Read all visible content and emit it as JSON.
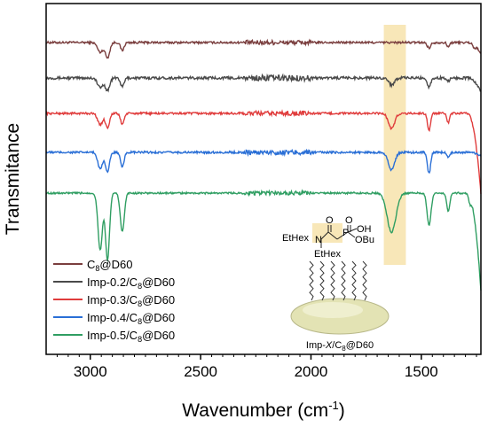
{
  "chart_data": {
    "type": "line",
    "title": "",
    "xlabel": "Wavenumber (cm",
    "xlabel_sup": "-1",
    "xlabel_end": ")",
    "ylabel": "Transmitance",
    "xlim": [
      3200,
      1230
    ],
    "x_reversed": true,
    "y_ticks_shown": false,
    "xticks": [
      {
        "value": 3000,
        "label": "3000"
      },
      {
        "value": 2500,
        "label": "2500"
      },
      {
        "value": 2000,
        "label": "2000"
      },
      {
        "value": 1500,
        "label": "1500"
      }
    ],
    "highlight_band": {
      "from": 1670,
      "to": 1570,
      "color": "#f6dfa0"
    },
    "series": [
      {
        "name_parts": [
          "C",
          "8",
          "@D60"
        ],
        "color": "#7a3e3e",
        "baseline": 1.0,
        "noise": 0.012,
        "peaks": [
          [
            2955,
            0.055,
            12
          ],
          [
            2922,
            0.085,
            10
          ],
          [
            2855,
            0.045,
            8
          ],
          [
            1465,
            0.03,
            8
          ],
          [
            1378,
            0.025,
            6
          ],
          [
            1260,
            0.02,
            5
          ]
        ],
        "tail": -0.06
      },
      {
        "name_parts": [
          "Imp-0.2/C",
          "8",
          "@D60"
        ],
        "color": "#4a4a4a",
        "baseline": 0.8,
        "noise": 0.015,
        "peaks": [
          [
            2955,
            0.055,
            12
          ],
          [
            2922,
            0.07,
            10
          ],
          [
            2855,
            0.05,
            8
          ],
          [
            1635,
            0.04,
            12
          ],
          [
            1465,
            0.05,
            8
          ],
          [
            1378,
            0.02,
            6
          ]
        ],
        "tail": -0.08
      },
      {
        "name_parts": [
          "Imp-0.3/C",
          "8",
          "@D60"
        ],
        "color": "#e03c3c",
        "baseline": 0.6,
        "noise": 0.012,
        "peaks": [
          [
            2955,
            0.065,
            11
          ],
          [
            2922,
            0.08,
            9
          ],
          [
            2855,
            0.06,
            8
          ],
          [
            1635,
            0.085,
            14
          ],
          [
            1465,
            0.095,
            7
          ],
          [
            1378,
            0.055,
            6
          ]
        ],
        "tail": -0.45
      },
      {
        "name_parts": [
          "Imp-0.4/C",
          "8",
          "@D60"
        ],
        "color": "#2a6fd6",
        "baseline": 0.38,
        "noise": 0.012,
        "peaks": [
          [
            2955,
            0.09,
            11
          ],
          [
            2922,
            0.11,
            9
          ],
          [
            2855,
            0.085,
            8
          ],
          [
            1635,
            0.1,
            14
          ],
          [
            1465,
            0.12,
            7
          ],
          [
            1378,
            0.03,
            6
          ]
        ],
        "tail": -0.02
      },
      {
        "name_parts": [
          "Imp-0.5/C",
          "8",
          "@D60"
        ],
        "color": "#2f9e62",
        "baseline": 0.15,
        "noise": 0.01,
        "peaks": [
          [
            2955,
            0.32,
            10
          ],
          [
            2922,
            0.38,
            9
          ],
          [
            2855,
            0.22,
            9
          ],
          [
            1635,
            0.22,
            20
          ],
          [
            1465,
            0.18,
            9
          ],
          [
            1378,
            0.1,
            7
          ],
          [
            1280,
            0.05,
            6
          ]
        ],
        "tail": -0.55
      }
    ],
    "inset": {
      "ethex_left": "EtHex",
      "n_label": "N",
      "o_label": "O",
      "p_label": "P",
      "p_o_label": "O",
      "oh_label": "OH",
      "obu_label": "OBu",
      "ethex_bottom": "EtHex",
      "caption_parts": [
        "Imp-",
        "X",
        "/C",
        "8",
        "@D60"
      ]
    }
  }
}
